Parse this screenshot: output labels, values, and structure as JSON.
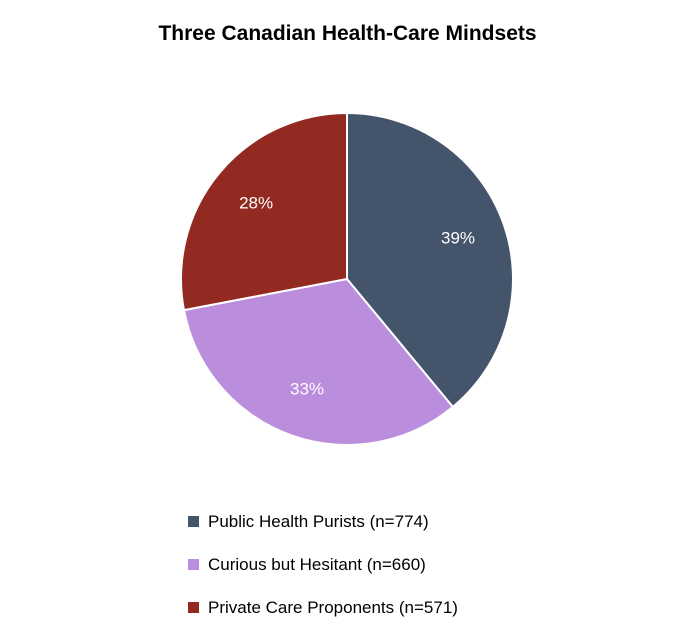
{
  "chart_data": {
    "type": "pie",
    "title": "Three Canadian Health-Care Mindsets",
    "slices": [
      {
        "label": "Public Health Purists (n=774)",
        "value": 39,
        "display": "39%",
        "color": "#44546a"
      },
      {
        "label": "Curious but Hesitant (n=660)",
        "value": 33,
        "display": "33%",
        "color": "#bb8edd"
      },
      {
        "label": "Private Care Proponents (n=571)",
        "value": 28,
        "display": "28%",
        "color": "#922a22"
      }
    ],
    "legend_position": "bottom"
  }
}
